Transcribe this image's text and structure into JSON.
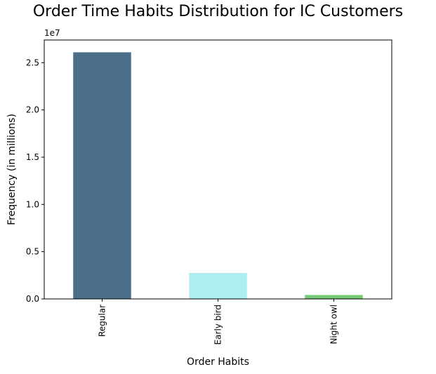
{
  "chart_data": {
    "type": "bar",
    "title": "Order Time Habits Distribution for IC Customers",
    "xlabel": "Order Habits",
    "ylabel": "Frequency (in millions)",
    "y_offset_label": "1e7",
    "categories": [
      "Regular",
      "Early bird",
      "Night owl"
    ],
    "values": [
      26100000,
      2750000,
      420000
    ],
    "colors": [
      "#4b6f89",
      "#aeeeee",
      "#77c977"
    ],
    "ylim": [
      0,
      27400000
    ],
    "yticks": [
      0,
      5000000,
      10000000,
      15000000,
      20000000,
      25000000
    ],
    "ytick_labels": [
      "0.0",
      "0.5",
      "1.0",
      "1.5",
      "2.0",
      "2.5"
    ],
    "grid": false,
    "legend": "none"
  }
}
